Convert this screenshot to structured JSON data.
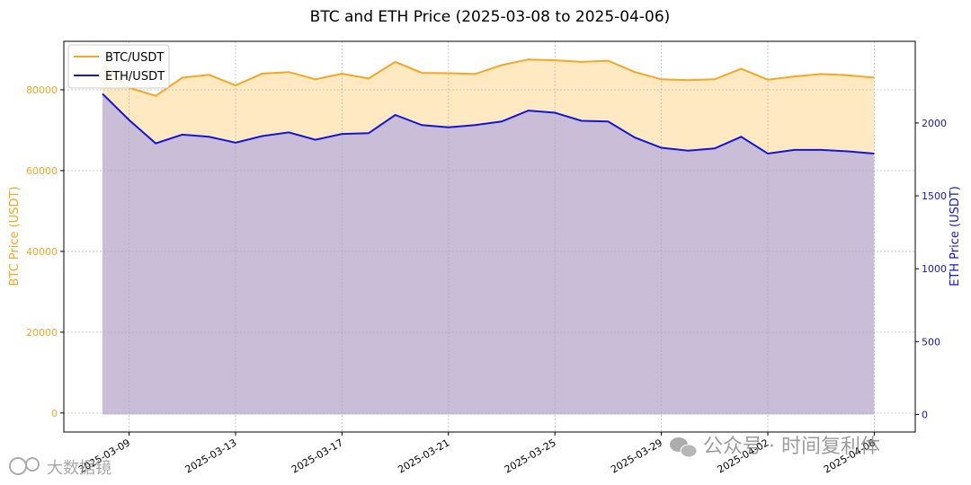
{
  "chart_data": {
    "type": "line",
    "title": "BTC and ETH Price (2025-03-08 to 2025-04-06)",
    "x": [
      "2025-03-08",
      "2025-03-09",
      "2025-03-10",
      "2025-03-11",
      "2025-03-12",
      "2025-03-13",
      "2025-03-14",
      "2025-03-15",
      "2025-03-16",
      "2025-03-17",
      "2025-03-18",
      "2025-03-19",
      "2025-03-20",
      "2025-03-21",
      "2025-03-22",
      "2025-03-23",
      "2025-03-24",
      "2025-03-25",
      "2025-03-26",
      "2025-03-27",
      "2025-03-28",
      "2025-03-29",
      "2025-03-30",
      "2025-03-31",
      "2025-04-01",
      "2025-04-02",
      "2025-04-03",
      "2025-04-04",
      "2025-04-05",
      "2025-04-06"
    ],
    "x_tick_labels": [
      "2025-03-09",
      "2025-03-13",
      "2025-03-17",
      "2025-03-21",
      "2025-03-25",
      "2025-03-29",
      "2025-04-02",
      "2025-04-06"
    ],
    "series": [
      {
        "name": "BTC/USDT",
        "axis": "left",
        "color": "#f5a623",
        "values": [
          86000,
          80500,
          78500,
          83000,
          83700,
          81100,
          84000,
          84400,
          82600,
          84000,
          82800,
          86900,
          84200,
          84100,
          83900,
          86100,
          87500,
          87300,
          86900,
          87200,
          84400,
          82600,
          82400,
          82600,
          85200,
          82500,
          83300,
          83900,
          83600,
          83000
        ]
      },
      {
        "name": "ETH/USDT",
        "axis": "right",
        "color": "#1414d6",
        "values": [
          2200,
          2020,
          1860,
          1920,
          1905,
          1865,
          1910,
          1935,
          1885,
          1925,
          1930,
          2055,
          1985,
          1970,
          1985,
          2010,
          2085,
          2070,
          2015,
          2010,
          1900,
          1830,
          1810,
          1825,
          1905,
          1790,
          1815,
          1815,
          1805,
          1790
        ]
      }
    ],
    "ylabel": "BTC Price (USDT)",
    "ylabel_right": "ETH Price (USDT)",
    "ylim": [
      -4700,
      92000
    ],
    "ylim_right": [
      -120,
      2560
    ],
    "yticks": [
      0,
      20000,
      40000,
      60000,
      80000
    ],
    "yticks_right": [
      0,
      500,
      1000,
      1500,
      2000
    ],
    "grid": true,
    "legend": "top-left",
    "fill_colors": {
      "btc": "#ffe9c2",
      "eth": "#c9bdd8"
    }
  },
  "watermarks": {
    "bottom_right": "公众号 · 时间复利体",
    "bottom_left": "大数据镜"
  }
}
